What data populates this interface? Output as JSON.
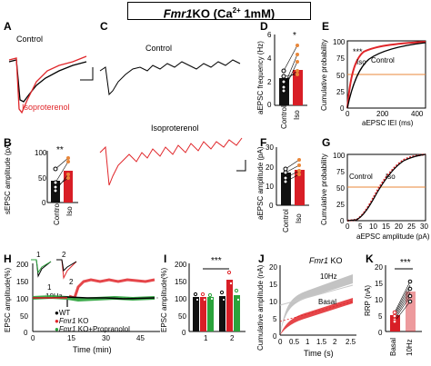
{
  "figure": {
    "title_gene": "Fmr1",
    "title_rest": "KO (Ca",
    "title_sup": "2+",
    "title_tail": " 1mM)"
  },
  "panels": {
    "A": {
      "label": "A",
      "control": "Control",
      "iso": "Isoproterenol"
    },
    "B": {
      "label": "B",
      "ylabel": "sEPSC  amplitude    (pA)",
      "yticks": [
        "100",
        "50",
        "0"
      ],
      "sig": "**",
      "cats": [
        "Control",
        "Iso"
      ]
    },
    "C": {
      "label": "C",
      "control": "Control",
      "iso": "Isoproterenol"
    },
    "D": {
      "label": "D",
      "ylabel": "aEPSC  frequency     (Hz)",
      "yticks": [
        "6",
        "4",
        "2",
        "0"
      ],
      "sig": "*",
      "cats": [
        "Control",
        "Iso"
      ]
    },
    "E": {
      "label": "E",
      "ylabel": "Cumulative probability",
      "xlabel": "aEPSC IEI (ms)",
      "yticks": [
        "100",
        "75",
        "50",
        "25",
        "0"
      ],
      "xticks": [
        "0",
        "200",
        "400"
      ],
      "sig": "***",
      "iso": "Iso",
      "control": "Control"
    },
    "F": {
      "label": "F",
      "ylabel": "aEPSC  amplitude   (pA)",
      "yticks": [
        "30",
        "20",
        "10",
        "0"
      ],
      "cats": [
        "Control",
        "Iso"
      ]
    },
    "G": {
      "label": "G",
      "ylabel": "Cumulative probability",
      "xlabel": "aEPSC amplitude (pA)",
      "yticks": [
        "100",
        "75",
        "50",
        "25",
        "0"
      ],
      "xticks": [
        "0",
        "5",
        "10",
        "15",
        "20",
        "25",
        "30"
      ],
      "control": "Control",
      "iso": "Iso"
    },
    "H": {
      "label": "H",
      "ylabel": "EPSC amplitude(%)",
      "xlabel": "Time (min)",
      "yticks": [
        "200",
        "150",
        "100",
        "50",
        "0"
      ],
      "xticks": [
        "0",
        "15",
        "30",
        "45"
      ],
      "stim": "10Hz",
      "n1": "1",
      "n2": "2",
      "inset1": "1",
      "inset2": "2",
      "legend": [
        {
          "marker": "●",
          "pre": "",
          "gene": "",
          "post": "WT"
        },
        {
          "marker": "●",
          "pre": "",
          "gene": "Fmr1",
          "post": " KO"
        },
        {
          "marker": "●",
          "pre": "",
          "gene": "Fmr1",
          "post": " KO+Propranolol"
        }
      ]
    },
    "I": {
      "label": "I",
      "ylabel": "EPSC amplitude(%)",
      "yticks": [
        "200",
        "150",
        "100",
        "50",
        "0"
      ],
      "xticks": [
        "1",
        "2"
      ],
      "sig": "***"
    },
    "J": {
      "label": "J",
      "ylabel": "Cumulative amplitude (nA)",
      "xlabel": "Time (s)",
      "title": "Fmr1 KO",
      "title_gene": "Fmr1",
      "title_rest": " KO",
      "yticks": [
        "20",
        "15",
        "10",
        "5",
        "0"
      ],
      "xticks": [
        "0",
        "0.5",
        "1",
        "1.5",
        "2",
        "2.5"
      ],
      "s1": "10Hz",
      "s2": "Basal"
    },
    "K": {
      "label": "K",
      "ylabel": "RRP (nA)",
      "yticks": [
        "20",
        "15",
        "10",
        "5",
        "0"
      ],
      "sig": "***",
      "cats": [
        "Basal",
        "10Hz"
      ]
    }
  },
  "colors": {
    "control": "#000000",
    "iso": "#e0262a",
    "ko": "#e0262a",
    "wt": "#000000",
    "prop": "#2aa33b",
    "orange": "#e8873a",
    "bar_black": "#111111",
    "bar_red": "#d81e26",
    "bar_green": "#2aa33b"
  },
  "chart_data": [
    {
      "panel": "B",
      "type": "bar",
      "categories": [
        "Control",
        "Iso"
      ],
      "values": [
        42,
        62
      ],
      "ylim": [
        0,
        100
      ],
      "ylabel": "sEPSC amplitude (pA)"
    },
    {
      "panel": "D",
      "type": "bar",
      "categories": [
        "Control",
        "Iso"
      ],
      "values": [
        2.3,
        3.0
      ],
      "ylim": [
        0,
        6
      ],
      "ylabel": "aEPSC frequency (Hz)"
    },
    {
      "panel": "F",
      "type": "bar",
      "categories": [
        "Control",
        "Iso"
      ],
      "values": [
        17,
        18.5
      ],
      "ylim": [
        0,
        30
      ],
      "ylabel": "aEPSC amplitude (pA)"
    },
    {
      "panel": "E",
      "type": "line",
      "xlabel": "aEPSC IEI (ms)",
      "ylabel": "Cumulative probability",
      "xlim": [
        0,
        450
      ],
      "ylim": [
        0,
        100
      ],
      "series": [
        {
          "name": "Iso",
          "x": [
            0,
            25,
            50,
            100,
            150,
            200,
            300,
            400
          ],
          "y": [
            0,
            55,
            72,
            88,
            93,
            96,
            98,
            99
          ]
        },
        {
          "name": "Control",
          "x": [
            0,
            25,
            50,
            100,
            150,
            200,
            300,
            400
          ],
          "y": [
            0,
            38,
            58,
            78,
            88,
            93,
            97,
            99
          ]
        }
      ]
    },
    {
      "panel": "G",
      "type": "line",
      "xlabel": "aEPSC amplitude (pA)",
      "ylabel": "Cumulative probability",
      "xlim": [
        0,
        30
      ],
      "ylim": [
        0,
        100
      ],
      "series": [
        {
          "name": "Control",
          "x": [
            0,
            5,
            10,
            12,
            15,
            20,
            25,
            30
          ],
          "y": [
            0,
            2,
            20,
            33,
            58,
            85,
            96,
            100
          ]
        },
        {
          "name": "Iso",
          "x": [
            0,
            5,
            10,
            12,
            15,
            20,
            25,
            30
          ],
          "y": [
            0,
            3,
            22,
            35,
            60,
            86,
            96,
            100
          ]
        }
      ]
    },
    {
      "panel": "I",
      "type": "bar",
      "categories": [
        "1",
        "2"
      ],
      "series": [
        {
          "name": "WT",
          "values": [
            100,
            100
          ]
        },
        {
          "name": "Fmr1 KO",
          "values": [
            100,
            150
          ]
        },
        {
          "name": "Fmr1 KO+Propranolol",
          "values": [
            100,
            105
          ]
        }
      ],
      "ylim": [
        0,
        200
      ]
    },
    {
      "panel": "K",
      "type": "bar",
      "categories": [
        "Basal",
        "10Hz"
      ],
      "values": [
        5,
        12
      ],
      "ylim": [
        0,
        20
      ],
      "ylabel": "RRP (nA)"
    }
  ]
}
